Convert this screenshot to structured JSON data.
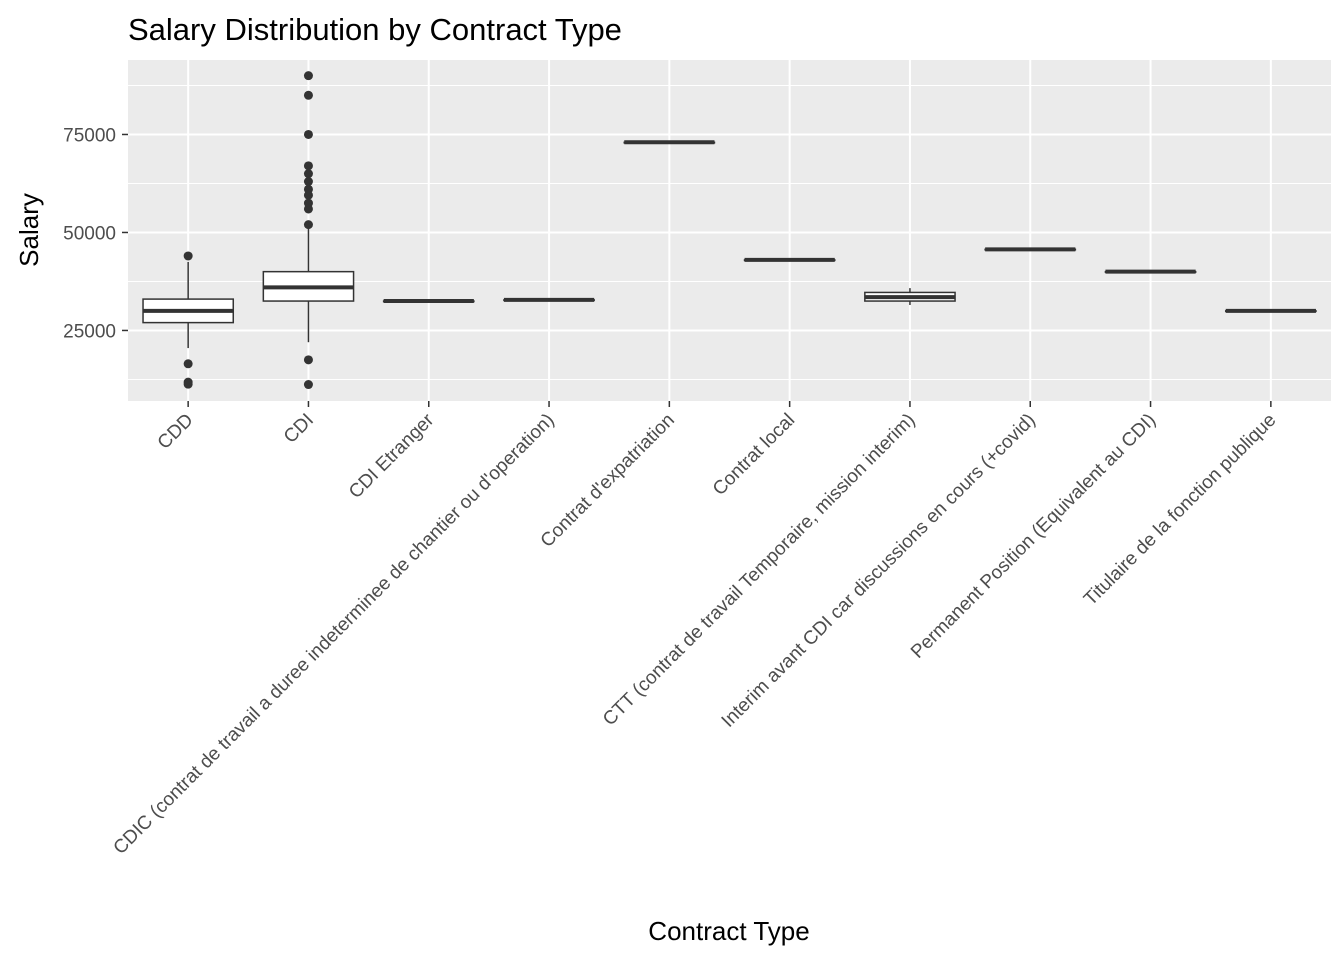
{
  "chart_data": {
    "type": "box",
    "title": "Salary Distribution by Contract Type",
    "xlabel": "Contract Type",
    "ylabel": "Salary",
    "ylim": [
      7000,
      94000
    ],
    "yticks": [
      25000,
      50000,
      75000
    ],
    "ytick_labels": [
      "25000",
      "50000",
      "75000"
    ],
    "grid": true,
    "legend": "none",
    "colors": {
      "panel_bg": "#ebebeb",
      "grid": "#ffffff",
      "box_fill": "#ffffff",
      "box_stroke": "#333333",
      "outlier": "#333333",
      "tick_text": "#4d4d4d"
    },
    "categories": [
      "CDD",
      "CDI",
      "CDI Etranger",
      "CDIC (contrat de travail a duree indeterminee de chantier ou d'operation)",
      "Contrat d'expatriation",
      "Contrat local",
      "CTT (contrat de travail Temporaire, mission interim)",
      "Interim avant CDI car discussions en cours (+covid)",
      "Permanent Position (Equivalent au CDI)",
      "Titulaire de la fonction publique"
    ],
    "boxes": [
      {
        "whisker_low": 20500,
        "q1": 27000,
        "median": 30000,
        "q3": 33000,
        "whisker_high": 42500,
        "outliers": [
          44000,
          16500,
          11800,
          11300
        ]
      },
      {
        "whisker_low": 22000,
        "q1": 32500,
        "median": 36000,
        "q3": 40000,
        "whisker_high": 51000,
        "outliers": [
          90000,
          85000,
          75000,
          67000,
          65000,
          63000,
          61000,
          59500,
          57500,
          56000,
          52000,
          17500,
          11200
        ]
      },
      {
        "whisker_low": 32500,
        "q1": 32500,
        "median": 32500,
        "q3": 32500,
        "whisker_high": 32500,
        "outliers": []
      },
      {
        "whisker_low": 32800,
        "q1": 32800,
        "median": 32800,
        "q3": 32800,
        "whisker_high": 32800,
        "outliers": []
      },
      {
        "whisker_low": 73000,
        "q1": 73000,
        "median": 73000,
        "q3": 73000,
        "whisker_high": 73000,
        "outliers": []
      },
      {
        "whisker_low": 43000,
        "q1": 43000,
        "median": 43000,
        "q3": 43000,
        "whisker_high": 43000,
        "outliers": []
      },
      {
        "whisker_low": 31500,
        "q1": 32500,
        "median": 33500,
        "q3": 34700,
        "whisker_high": 35800,
        "outliers": []
      },
      {
        "whisker_low": 45700,
        "q1": 45700,
        "median": 45700,
        "q3": 45700,
        "whisker_high": 45700,
        "outliers": []
      },
      {
        "whisker_low": 40000,
        "q1": 40000,
        "median": 40000,
        "q3": 40000,
        "whisker_high": 40000,
        "outliers": []
      },
      {
        "whisker_low": 30000,
        "q1": 30000,
        "median": 30000,
        "q3": 30000,
        "whisker_high": 30000,
        "outliers": []
      }
    ]
  }
}
